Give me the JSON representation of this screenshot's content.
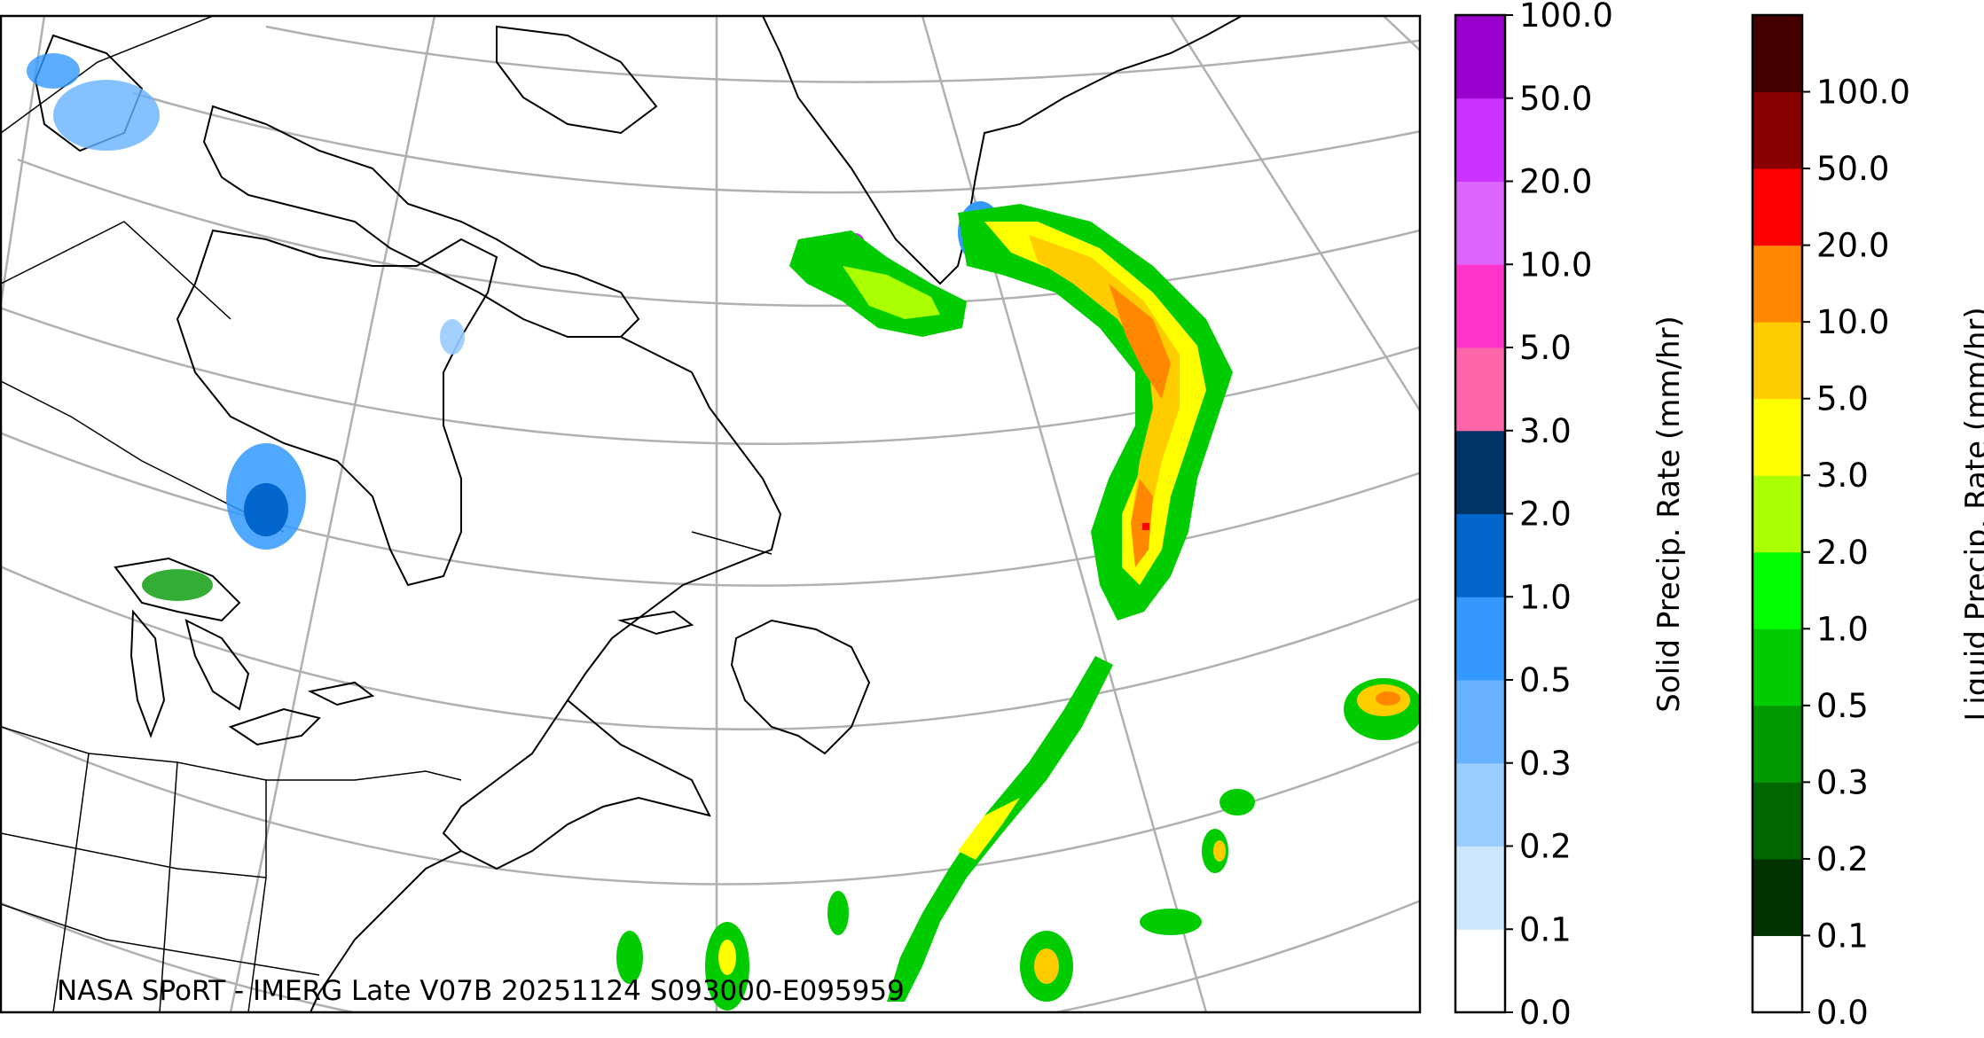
{
  "credit": "NASA SPoRT - IMERG Late V07B 20251124 S093000-E095959",
  "solid_colorbar": {
    "label": "Solid Precip. Rate (mm/hr)",
    "ticks": [
      "0.0",
      "0.1",
      "0.2",
      "0.3",
      "0.5",
      "1.0",
      "2.0",
      "3.0",
      "5.0",
      "10.0",
      "20.0",
      "50.0",
      "100.0"
    ],
    "colors": [
      "#ffffff",
      "#cce6ff",
      "#99ccff",
      "#66b2ff",
      "#3399ff",
      "#0066cc",
      "#003366",
      "#ff66aa",
      "#ff33cc",
      "#dd66ff",
      "#cc33ff",
      "#9900cc"
    ]
  },
  "liquid_colorbar": {
    "label": "Liquid Precip. Rate (mm/hr)",
    "ticks": [
      "0.0",
      "0.1",
      "0.2",
      "0.3",
      "0.5",
      "1.0",
      "2.0",
      "3.0",
      "5.0",
      "10.0",
      "20.0",
      "50.0",
      "100.0"
    ],
    "colors": [
      "#ffffff",
      "#003300",
      "#006600",
      "#009900",
      "#00cc00",
      "#00ff00",
      "#aaff00",
      "#ffff00",
      "#ffcc00",
      "#ff8800",
      "#ff0000",
      "#880000",
      "#440000"
    ]
  },
  "legend_colors": {
    "graticule": "#b0b0b0",
    "coastline": "#000000"
  }
}
